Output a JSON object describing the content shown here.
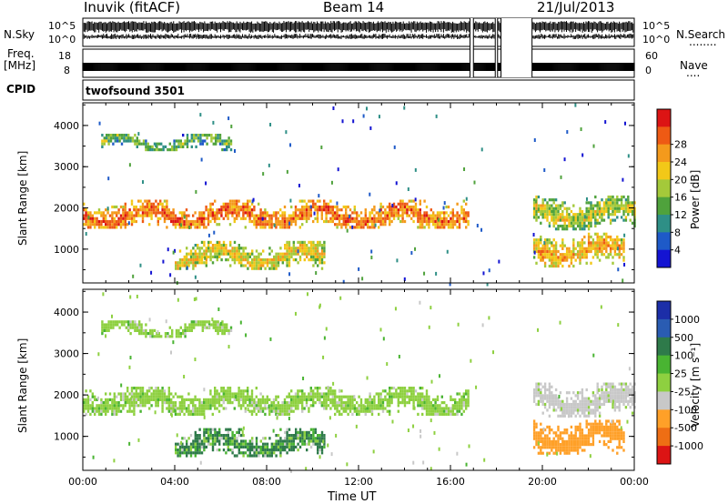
{
  "header": {
    "station": "Inuvik (fitACF)",
    "beam": "Beam 14",
    "date": "21/Jul/2013"
  },
  "panels": {
    "nsky_label": "N.Sky",
    "nsearch_label": "N.Search",
    "nsearch_dots": "........",
    "freq_label_1": "Freq.",
    "freq_label_2": "[MHz]",
    "nave_label": "Nave",
    "nave_dots": "....",
    "cpid_label": "CPID",
    "cpid_value": "twofsound 3501",
    "noise_ticks": [
      "10^5",
      "10^0"
    ],
    "freq_ticks": [
      "18",
      "8"
    ],
    "nave_ticks": [
      "60",
      "0"
    ]
  },
  "chart_data": [
    {
      "type": "heatmap",
      "name": "power",
      "ylabel": "Slant Range [km]",
      "ylim": [
        180,
        4550
      ],
      "yticks": [
        1000,
        2000,
        3000,
        4000
      ],
      "xlim": [
        0,
        24
      ],
      "colorbar": {
        "label": "Power [dB]",
        "ticks": [
          "4",
          "8",
          "12",
          "16",
          "20",
          "24",
          "28"
        ],
        "colors": [
          "#1414d2",
          "#1e5ac8",
          "#2e8f86",
          "#4fa23c",
          "#a4c93a",
          "#f2c818",
          "#f49a1c",
          "#ee5a14",
          "#dc1414"
        ]
      },
      "data_gaps_hours": [
        [
          16.85,
          17.0
        ],
        [
          17.95,
          18.05
        ],
        [
          18.2,
          19.55
        ]
      ],
      "echo_bands": [
        {
          "t0": 0.0,
          "t1": 16.8,
          "r0": 1500,
          "r1": 2200,
          "mean_db": 20
        },
        {
          "t0": 4.0,
          "t1": 10.5,
          "r0": 500,
          "r1": 1200,
          "mean_db": 14
        },
        {
          "t0": 0.8,
          "t1": 6.5,
          "r0": 3400,
          "r1": 3800,
          "mean_db": 8
        },
        {
          "t0": 19.6,
          "t1": 24.0,
          "r0": 1500,
          "r1": 2300,
          "mean_db": 12
        },
        {
          "t0": 19.6,
          "t1": 23.5,
          "r0": 600,
          "r1": 1400,
          "mean_db": 16
        }
      ]
    },
    {
      "type": "heatmap",
      "name": "velocity",
      "ylabel": "Slant Range [km]",
      "xlabel": "Time UT",
      "ylim": [
        180,
        4550
      ],
      "yticks": [
        1000,
        2000,
        3000,
        4000
      ],
      "xlim": [
        0,
        24
      ],
      "xticks": [
        "00:00",
        "04:00",
        "08:00",
        "12:00",
        "16:00",
        "20:00",
        "00:00"
      ],
      "colorbar": {
        "label": "Velocity [m s⁻¹]",
        "ticks": [
          "1000",
          "500",
          "100",
          "25",
          "-25",
          "-100",
          "-500",
          "-1000"
        ],
        "colors": [
          "#1c2ea8",
          "#2a5cb2",
          "#2e7a4a",
          "#49b432",
          "#8ed040",
          "#c8c8c8",
          "#ffa028",
          "#ee6e14",
          "#dc1414"
        ]
      },
      "data_gaps_hours": [
        [
          16.85,
          17.0
        ],
        [
          17.95,
          18.05
        ],
        [
          18.2,
          19.55
        ]
      ],
      "echo_bands": [
        {
          "t0": 0.0,
          "t1": 16.8,
          "r0": 1500,
          "r1": 2200,
          "mean_v": 0
        },
        {
          "t0": 4.0,
          "t1": 10.5,
          "r0": 500,
          "r1": 1200,
          "mean_v": 150
        },
        {
          "t0": 0.8,
          "t1": 6.5,
          "r0": 3400,
          "r1": 3800,
          "mean_v": 0
        },
        {
          "t0": 19.6,
          "t1": 24.0,
          "r0": 1500,
          "r1": 2300,
          "mean_v": -50
        },
        {
          "t0": 19.6,
          "t1": 23.5,
          "r0": 600,
          "r1": 1400,
          "mean_v": -200
        }
      ]
    }
  ]
}
